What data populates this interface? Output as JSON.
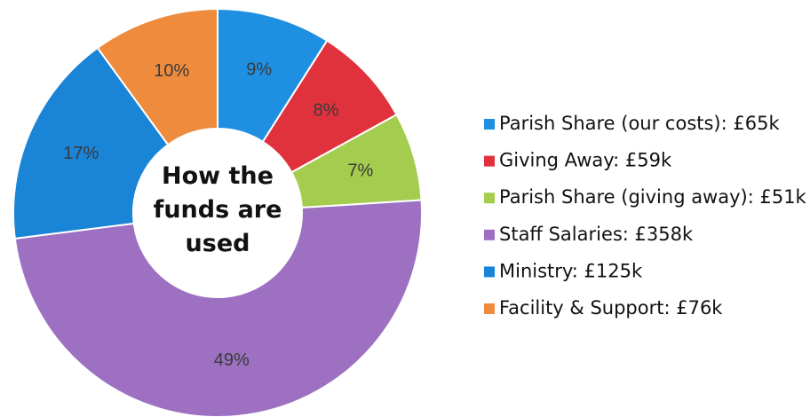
{
  "chart_data": {
    "type": "donut",
    "title": "How the funds are used",
    "categories": [
      "Parish Share (our costs): £65k",
      "Giving Away: £59k",
      "Parish Share (giving away): £51k",
      "Staff Salaries: £358k",
      "Ministry: £125k",
      "Facility & Support: £76k"
    ],
    "values": [
      9,
      8,
      7,
      49,
      17,
      10
    ],
    "value_labels": [
      "9%",
      "8%",
      "7%",
      "49%",
      "17%",
      "10%"
    ],
    "colors": [
      "#1f8fe2",
      "#e0323c",
      "#a4cc4e",
      "#9d70c2",
      "#1a84d6",
      "#ef8b3d"
    ],
    "legend": "right"
  }
}
